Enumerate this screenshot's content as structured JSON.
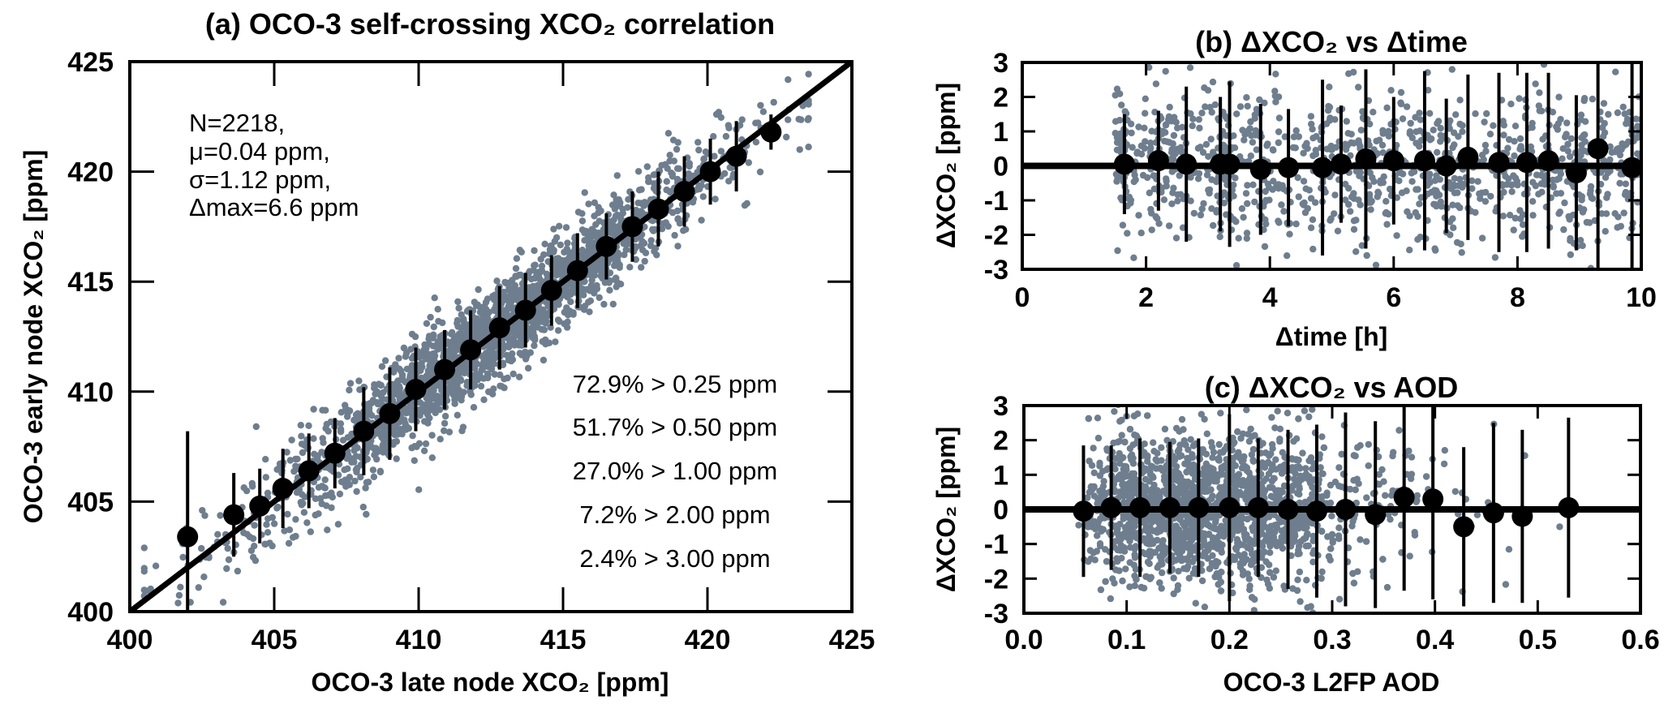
{
  "colors": {
    "scatter": "#6e7e8e",
    "binned": "#000000",
    "reference_line": "#000000"
  },
  "chart_data": [
    {
      "panel": "a",
      "type": "scatter",
      "title": "(a) OCO-3 self-crossing XCO₂ correlation",
      "xlabel": "OCO-3 late node XCO₂ [ppm]",
      "ylabel": "OCO-3 early node XCO₂ [ppm]",
      "xlim": [
        400,
        425
      ],
      "ylim": [
        400,
        425
      ],
      "xticks": [
        "400",
        "405",
        "410",
        "415",
        "420",
        "425"
      ],
      "yticks": [
        "400",
        "405",
        "410",
        "415",
        "420",
        "425"
      ],
      "reference_line": "1:1",
      "stats_lines": [
        "N=2218,",
        "μ=0.04  ppm,",
        "σ=1.12 ppm,",
        "Δmax=6.6  ppm"
      ],
      "threshold_lines": [
        "72.9% > 0.25 ppm",
        "51.7% > 0.50 ppm",
        "27.0% > 1.00 ppm",
        "7.2% > 2.00 ppm",
        "2.4% > 3.00 ppm"
      ],
      "scatter_summary": {
        "n": 2218,
        "mean_diff": 0.04,
        "std_diff": 1.12
      },
      "binned": {
        "x": [
          402.0,
          403.6,
          404.5,
          405.3,
          406.2,
          407.1,
          408.1,
          409.0,
          409.9,
          410.9,
          411.8,
          412.8,
          413.7,
          414.6,
          415.5,
          416.5,
          417.4,
          418.3,
          419.2,
          420.1,
          421.0,
          422.2
        ],
        "y": [
          403.4,
          404.4,
          404.8,
          405.6,
          406.4,
          407.2,
          408.2,
          409.0,
          410.1,
          411.0,
          411.9,
          412.9,
          413.7,
          414.6,
          415.5,
          416.6,
          417.5,
          418.3,
          419.1,
          420.0,
          420.7,
          421.8
        ],
        "err": [
          4.8,
          1.9,
          1.7,
          1.8,
          1.7,
          1.6,
          2.0,
          2.1,
          1.9,
          1.8,
          1.8,
          1.9,
          1.7,
          1.6,
          1.7,
          1.5,
          1.6,
          1.7,
          1.6,
          1.5,
          1.6,
          0.8
        ]
      }
    },
    {
      "panel": "b",
      "type": "scatter",
      "title": "(b) ΔXCO₂ vs Δtime",
      "xlabel": "Δtime [h]",
      "ylabel": "ΔXCO₂ [ppm]",
      "xlim": [
        0,
        10
      ],
      "ylim": [
        -3,
        3
      ],
      "xticks": [
        "0",
        "2",
        "4",
        "6",
        "8",
        "10"
      ],
      "yticks": [
        "-3",
        "-2",
        "-1",
        "0",
        "1",
        "2",
        "3"
      ],
      "reference_line": "y=0",
      "binned": {
        "x": [
          1.65,
          2.2,
          2.65,
          3.2,
          3.35,
          3.85,
          4.3,
          4.85,
          5.15,
          5.55,
          6.0,
          6.5,
          6.85,
          7.2,
          7.7,
          8.15,
          8.5,
          8.95,
          9.3,
          9.85
        ],
        "y": [
          0.05,
          0.15,
          0.05,
          0.05,
          0.05,
          -0.1,
          -0.05,
          -0.05,
          0.05,
          0.2,
          0.15,
          0.15,
          0.0,
          0.25,
          0.1,
          0.1,
          0.15,
          -0.2,
          0.5,
          -0.05
        ],
        "err": [
          1.45,
          1.45,
          2.25,
          1.95,
          2.4,
          1.9,
          1.7,
          2.55,
          1.7,
          2.6,
          1.85,
          2.6,
          1.95,
          2.4,
          2.6,
          2.6,
          2.55,
          2.25,
          3.5,
          3.5
        ]
      }
    },
    {
      "panel": "c",
      "type": "scatter",
      "title": "(c) ΔXCO₂ vs AOD",
      "xlabel": "OCO-3 L2FP AOD",
      "ylabel": "ΔXCO₂ [ppm]",
      "xlim": [
        0.0,
        0.6
      ],
      "ylim": [
        -3,
        3
      ],
      "xticks": [
        "0.0",
        "0.1",
        "0.2",
        "0.3",
        "0.4",
        "0.5",
        "0.6"
      ],
      "yticks": [
        "-3",
        "-2",
        "-1",
        "0",
        "1",
        "2",
        "3"
      ],
      "reference_line": "y=0",
      "binned": {
        "x": [
          0.058,
          0.085,
          0.113,
          0.142,
          0.17,
          0.2,
          0.228,
          0.257,
          0.285,
          0.313,
          0.342,
          0.37,
          0.398,
          0.428,
          0.457,
          0.485,
          0.53
        ],
        "y": [
          -0.05,
          0.05,
          0.05,
          0.05,
          0.05,
          0.05,
          0.05,
          0.0,
          -0.05,
          0.0,
          -0.15,
          0.35,
          0.3,
          -0.5,
          -0.1,
          -0.2,
          0.05
        ],
        "err": [
          1.9,
          1.8,
          2.0,
          1.9,
          2.0,
          2.7,
          2.0,
          2.3,
          2.5,
          2.8,
          2.7,
          2.7,
          2.9,
          2.3,
          2.6,
          2.5,
          2.6
        ]
      }
    }
  ]
}
